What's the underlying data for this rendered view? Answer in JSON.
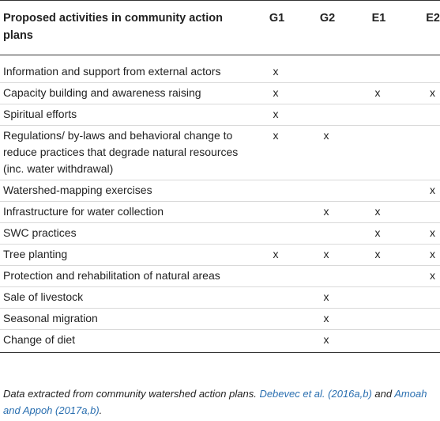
{
  "table": {
    "headers": {
      "activity": "Proposed activities in community action plans",
      "g1": "G1",
      "g2": "G2",
      "e1": "E1",
      "e2": "E2"
    },
    "rows": [
      {
        "activity": "Information and support from external actors",
        "g1": "x",
        "g2": "",
        "e1": "",
        "e2": ""
      },
      {
        "activity": "Capacity building and awareness raising",
        "g1": "x",
        "g2": "",
        "e1": "x",
        "e2": "x"
      },
      {
        "activity": "Spiritual efforts",
        "g1": "x",
        "g2": "",
        "e1": "",
        "e2": ""
      },
      {
        "activity": "Regulations/ by-laws and behavioral change to reduce practices that degrade natural resources (inc. water withdrawal)",
        "g1": "x",
        "g2": "x",
        "e1": "",
        "e2": ""
      },
      {
        "activity": "Watershed-mapping exercises",
        "g1": "",
        "g2": "",
        "e1": "",
        "e2": "x"
      },
      {
        "activity": "Infrastructure for water collection",
        "g1": "",
        "g2": "x",
        "e1": "x",
        "e2": ""
      },
      {
        "activity": "SWC practices",
        "g1": "",
        "g2": "",
        "e1": "x",
        "e2": "x"
      },
      {
        "activity": "Tree planting",
        "g1": "x",
        "g2": "x",
        "e1": "x",
        "e2": "x"
      },
      {
        "activity": "Protection and rehabilitation of natural areas",
        "g1": "",
        "g2": "",
        "e1": "",
        "e2": "x"
      },
      {
        "activity": "Sale of livestock",
        "g1": "",
        "g2": "x",
        "e1": "",
        "e2": ""
      },
      {
        "activity": "Seasonal migration",
        "g1": "",
        "g2": "x",
        "e1": "",
        "e2": ""
      },
      {
        "activity": "Change of diet",
        "g1": "",
        "g2": "x",
        "e1": "",
        "e2": ""
      }
    ]
  },
  "caption": {
    "lead": "Data extracted from community watershed action plans. ",
    "ref1": "Debevec et al. (2016a,b)",
    "mid": " and ",
    "ref2": "Amoah and Appoh (2017a,b)",
    "tail": "."
  },
  "colors": {
    "text": "#222222",
    "link": "#2a6fb0",
    "rule_strong": "#333333",
    "rule_light": "#d9d9d9"
  }
}
